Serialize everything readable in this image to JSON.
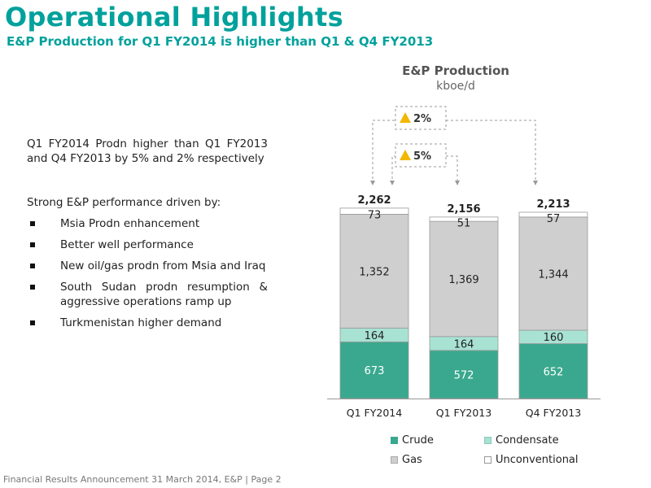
{
  "header": {
    "title": "Operational Highlights",
    "subtitle": "E&P Production for Q1 FY2014 is higher than Q1 & Q4 FY2013"
  },
  "body_text": {
    "paragraph": "Q1 FY2014 Prodn higher than Q1 FY2013 and Q4 FY2013 by 5% and 2% respectively",
    "lead": "Strong E&P performance driven by:",
    "bullets": [
      "Msia Prodn enhancement",
      "Better well performance",
      "New oil/gas prodn from Msia and Iraq",
      "South Sudan prodn resumption & aggressive operations ramp up",
      "Turkmenistan higher demand"
    ]
  },
  "footer": {
    "text": "Financial Results Announcement 31 March 2014, E&P | Page 2"
  },
  "colors": {
    "accent": "#00a19c",
    "crude": "#3aa88e",
    "condensate": "#a8e2d3",
    "gas": "#cfcfcf",
    "unconventional": "#ffffff",
    "arrow_up": "#f2b705"
  },
  "chart_data": {
    "type": "bar",
    "stacked": true,
    "title": "E&P Production",
    "subtitle": "kboe/d",
    "categories": [
      "Q1 FY2014",
      "Q1 FY2013",
      "Q4 FY2013"
    ],
    "series": [
      {
        "name": "Crude",
        "values": [
          673,
          572,
          652
        ]
      },
      {
        "name": "Condensate",
        "values": [
          164,
          164,
          160
        ]
      },
      {
        "name": "Gas",
        "values": [
          1352,
          1369,
          1344
        ]
      },
      {
        "name": "Unconventional",
        "values": [
          73,
          51,
          57
        ]
      }
    ],
    "totals": [
      "2,262",
      "2,156",
      "2,213"
    ],
    "data_labels": [
      [
        "673",
        "572",
        "652"
      ],
      [
        "164",
        "164",
        "160"
      ],
      [
        "1,352",
        "1,369",
        "1,344"
      ],
      [
        "73",
        "51",
        "57"
      ]
    ],
    "ylim": [
      0,
      2300
    ],
    "legend_position": "bottom",
    "grid": false,
    "annotations": [
      {
        "label": "2%",
        "from": "Q1 FY2014",
        "to": "Q4 FY2013",
        "direction": "up"
      },
      {
        "label": "5%",
        "from": "Q1 FY2014",
        "to": "Q1 FY2013",
        "direction": "up"
      }
    ]
  }
}
